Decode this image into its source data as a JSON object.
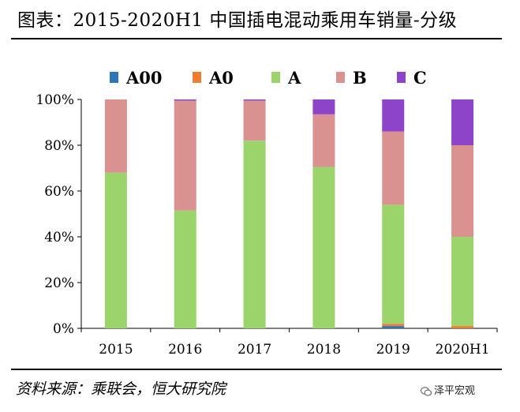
{
  "title": "图表：2015-2020H1 中国插电混动乘用车销量-分级",
  "source": "资料来源：乘联会，恒大研究院",
  "watermark": "泽平宏观",
  "chart_data": {
    "type": "bar",
    "stacked": true,
    "categories": [
      "2015",
      "2016",
      "2017",
      "2018",
      "2019",
      "2020H1"
    ],
    "series": [
      {
        "name": "A00",
        "color": "#2E75B6",
        "values": [
          0,
          0,
          0,
          0,
          1,
          0
        ]
      },
      {
        "name": "A0",
        "color": "#ED7D31",
        "values": [
          0,
          0,
          0,
          0,
          1,
          1
        ]
      },
      {
        "name": "A",
        "color": "#9BD46A",
        "values": [
          68,
          51.5,
          82,
          70.5,
          52,
          39
        ]
      },
      {
        "name": "B",
        "color": "#D9928F",
        "values": [
          32,
          48,
          17.5,
          23,
          32,
          40
        ]
      },
      {
        "name": "C",
        "color": "#8E44C8",
        "values": [
          0,
          0.5,
          0.5,
          6.5,
          14,
          20
        ]
      }
    ],
    "ylim": [
      0,
      100
    ],
    "yticks": [
      "0%",
      "20%",
      "40%",
      "60%",
      "80%",
      "100%"
    ],
    "legend_position": "top",
    "grid": false
  }
}
